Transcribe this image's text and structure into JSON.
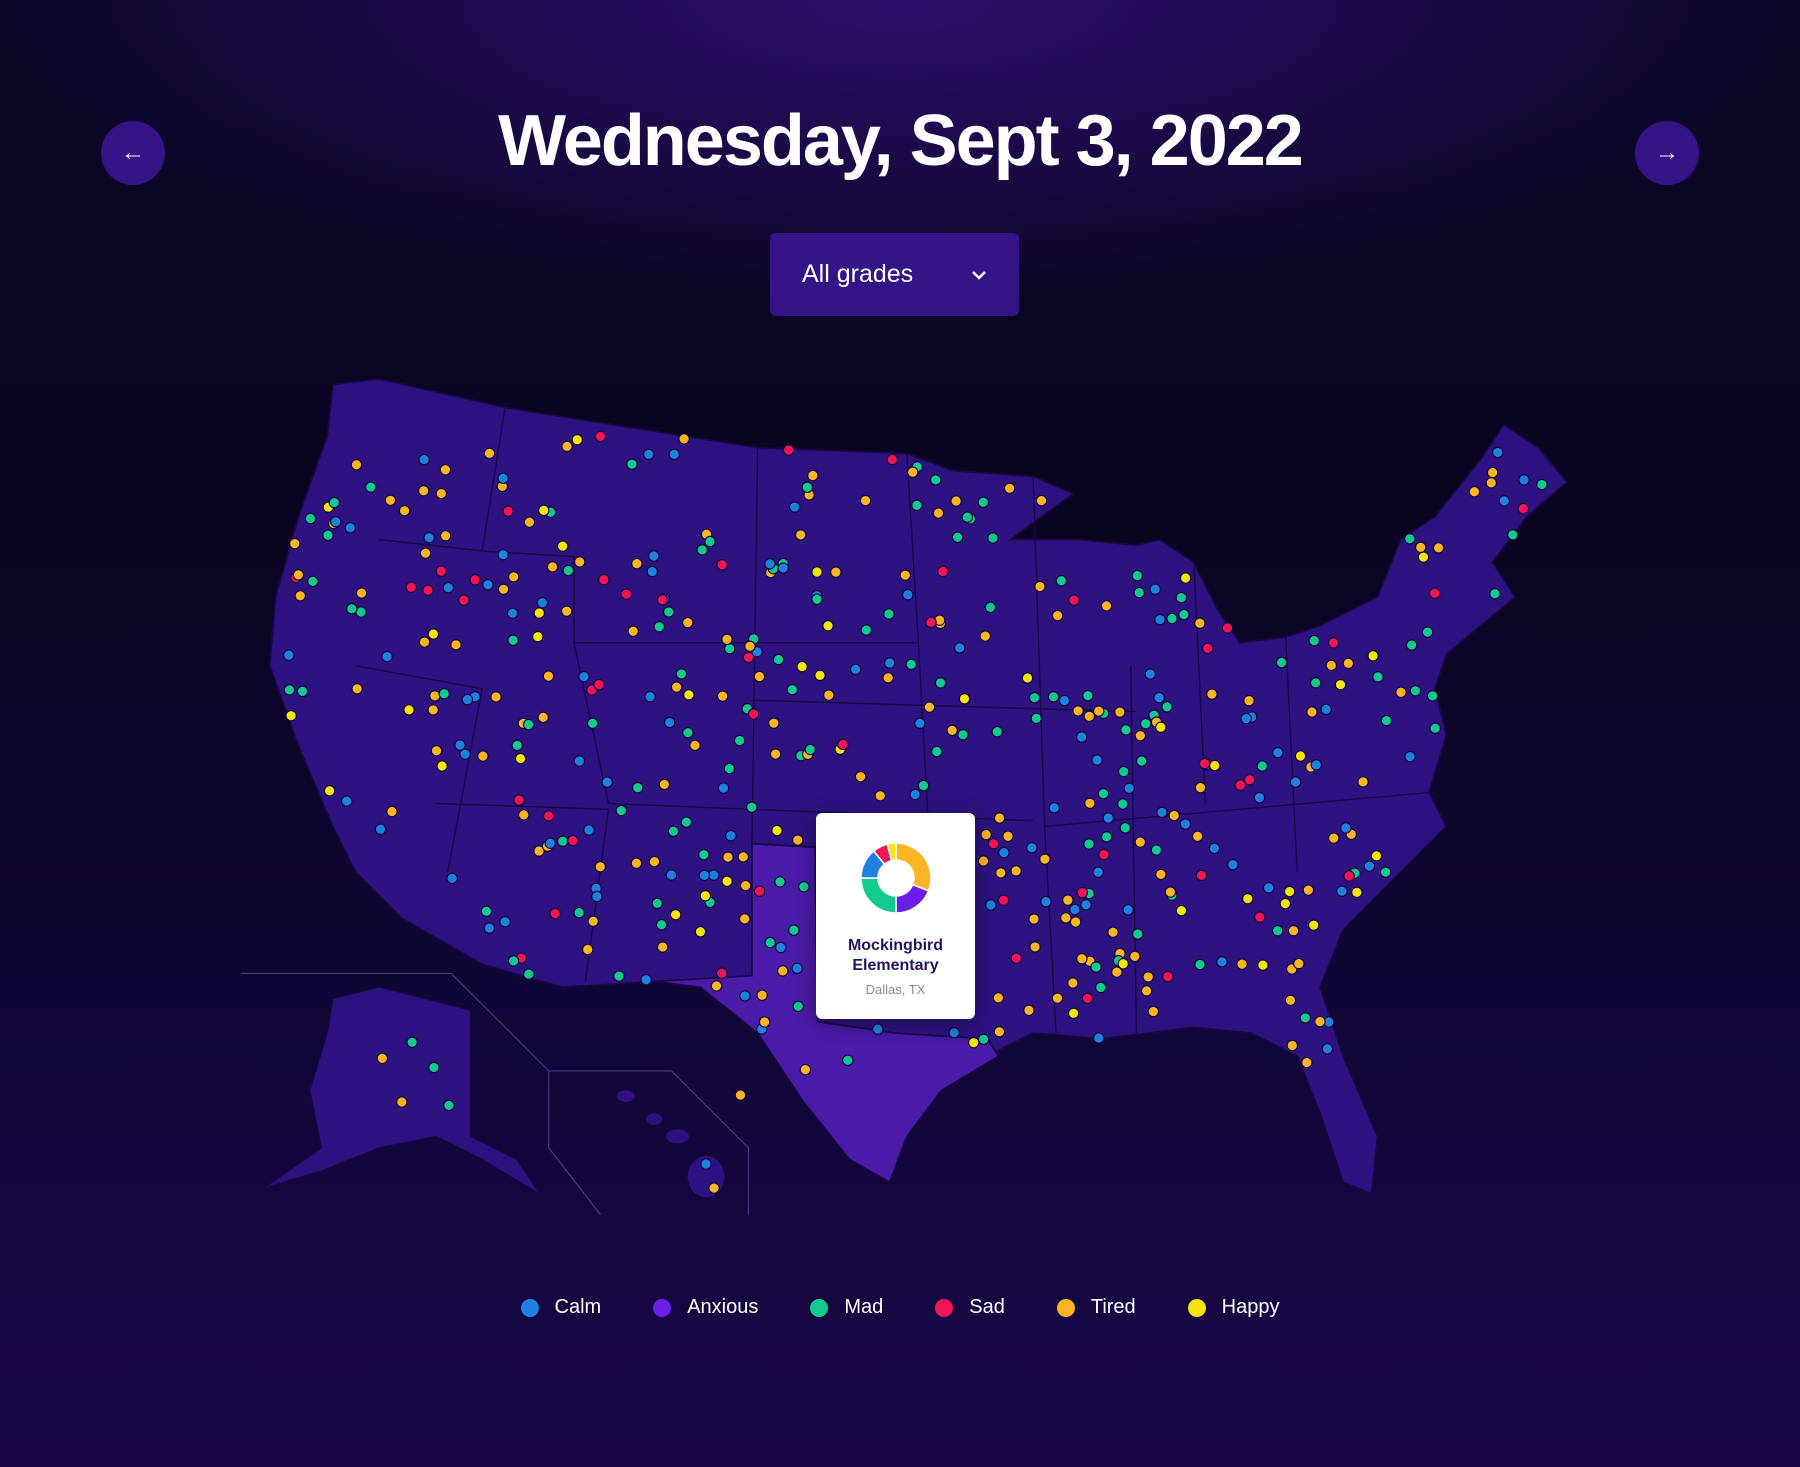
{
  "header": {
    "title": "Wednesday, Sept 3, 2022",
    "prev_icon": "arrow-left-icon",
    "next_icon": "arrow-right-icon"
  },
  "filter": {
    "selected": "All grades",
    "icon": "chevron-down-icon"
  },
  "tooltip": {
    "school": "Mockingbird Elementary",
    "location": "Dallas, TX",
    "breakdown": [
      {
        "mood": "Tired",
        "pct": 31
      },
      {
        "mood": "Anxious",
        "pct": 19
      },
      {
        "mood": "Mad",
        "pct": 25
      },
      {
        "mood": "Calm",
        "pct": 14
      },
      {
        "mood": "Sad",
        "pct": 7
      },
      {
        "mood": "Happy",
        "pct": 4
      }
    ]
  },
  "legend": [
    {
      "label": "Calm",
      "color": "#1e80e0"
    },
    {
      "label": "Anxious",
      "color": "#6a1ee8"
    },
    {
      "label": "Mad",
      "color": "#14c98f"
    },
    {
      "label": "Sad",
      "color": "#f01557"
    },
    {
      "label": "Tired",
      "color": "#fbb423"
    },
    {
      "label": "Happy",
      "color": "#f7e40a"
    }
  ],
  "map_colors": {
    "land": "#2e1282",
    "highlight": "#4a1aa8",
    "border": "#180840"
  }
}
